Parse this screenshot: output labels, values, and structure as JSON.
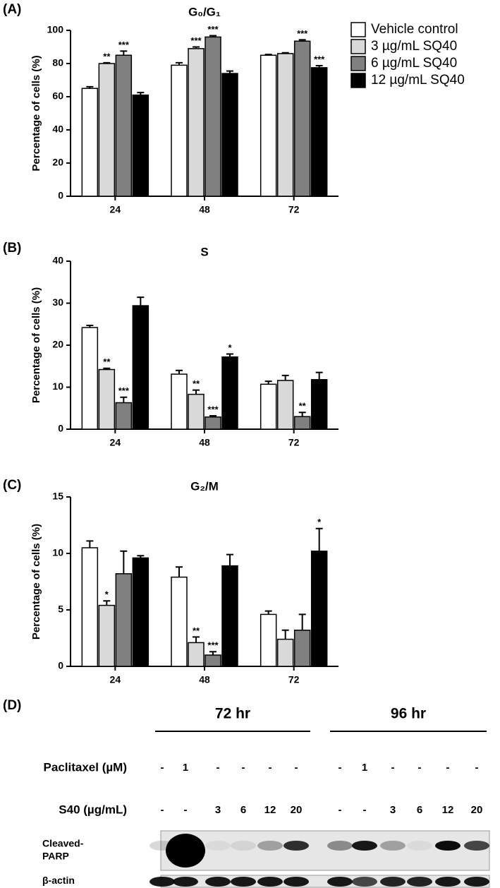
{
  "chart_data": [
    {
      "type": "bar",
      "panel": "(A)",
      "title": "G₀/G₁",
      "ylabel": "Percentage of cells (%)",
      "categories": [
        "24",
        "48",
        "72"
      ],
      "ylim": [
        0,
        100
      ],
      "yticks": [
        0,
        20,
        40,
        60,
        80,
        100
      ],
      "series": [
        {
          "name": "Vehicle control",
          "color": "#ffffff",
          "values": [
            65,
            79,
            85
          ],
          "errors": [
            1,
            1.5,
            0.5
          ],
          "significance": [
            null,
            null,
            null
          ]
        },
        {
          "name": "3 µg/mL SQ40",
          "color": "#d9d9d9",
          "values": [
            80,
            89,
            86
          ],
          "errors": [
            0.5,
            1,
            0.5
          ],
          "significance": [
            "**",
            "***",
            null
          ]
        },
        {
          "name": "6 µg/mL SQ40",
          "color": "#808080",
          "values": [
            85,
            96,
            93.5
          ],
          "errors": [
            2.5,
            0.8,
            0.8
          ],
          "significance": [
            "***",
            "***",
            "***"
          ]
        },
        {
          "name": "12 µg/mL SQ40",
          "color": "#000000",
          "values": [
            61,
            74,
            77.5
          ],
          "errors": [
            1.5,
            1.5,
            1.2
          ],
          "significance": [
            null,
            null,
            "***"
          ]
        }
      ]
    },
    {
      "type": "bar",
      "panel": "(B)",
      "title": "S",
      "ylabel": "Percentage of cells (%)",
      "categories": [
        "24",
        "48",
        "72"
      ],
      "ylim": [
        0,
        40
      ],
      "yticks": [
        0,
        10,
        20,
        30,
        40
      ],
      "series": [
        {
          "color": "#ffffff",
          "values": [
            24.2,
            13.1,
            10.7
          ],
          "errors": [
            0.5,
            0.9,
            0.7
          ],
          "significance": [
            null,
            null,
            null
          ]
        },
        {
          "color": "#d9d9d9",
          "values": [
            14.2,
            8.3,
            11.6
          ],
          "errors": [
            0.3,
            1,
            1.2
          ],
          "significance": [
            "**",
            "**",
            null
          ]
        },
        {
          "color": "#808080",
          "values": [
            6.3,
            2.9,
            3
          ],
          "errors": [
            1.3,
            0.3,
            1
          ],
          "significance": [
            "***",
            "***",
            "**"
          ]
        },
        {
          "color": "#000000",
          "values": [
            29.4,
            17.2,
            11.8
          ],
          "errors": [
            2,
            0.7,
            1.7
          ],
          "significance": [
            null,
            "*",
            null
          ]
        }
      ]
    },
    {
      "type": "bar",
      "panel": "(C)",
      "title": "G₂/M",
      "ylabel": "Percentage of cells (%)",
      "categories": [
        "24",
        "48",
        "72"
      ],
      "ylim": [
        0,
        15
      ],
      "yticks": [
        0,
        5,
        10,
        15
      ],
      "series": [
        {
          "color": "#ffffff",
          "values": [
            10.5,
            7.9,
            4.6
          ],
          "errors": [
            0.6,
            0.9,
            0.3
          ],
          "significance": [
            null,
            null,
            null
          ]
        },
        {
          "color": "#d9d9d9",
          "values": [
            5.4,
            2.1,
            2.4
          ],
          "errors": [
            0.4,
            0.5,
            0.8
          ],
          "significance": [
            "*",
            "**",
            null
          ]
        },
        {
          "color": "#808080",
          "values": [
            8.2,
            1,
            3.2
          ],
          "errors": [
            2,
            0.3,
            1.4
          ],
          "significance": [
            null,
            "***",
            null
          ]
        },
        {
          "color": "#000000",
          "values": [
            9.6,
            8.9,
            10.2
          ],
          "errors": [
            0.2,
            1,
            2
          ],
          "significance": [
            null,
            null,
            "*"
          ]
        }
      ]
    }
  ],
  "blot": {
    "label": "(D)",
    "groups": [
      "72 hr",
      "96 hr"
    ],
    "rows": [
      {
        "label": "Paclitaxel (µM)",
        "values": [
          "-",
          "1",
          "-",
          "-",
          "-",
          "-",
          "-",
          "1",
          "-",
          "-",
          "-",
          "-"
        ]
      },
      {
        "label": "S40 (µg/mL)",
        "values": [
          "-",
          "-",
          "3",
          "6",
          "12",
          "20",
          "-",
          "-",
          "3",
          "6",
          "12",
          "20"
        ]
      }
    ],
    "band_labels": [
      [
        "Cleaved-",
        "PARP"
      ],
      [
        "β-actin"
      ]
    ]
  }
}
